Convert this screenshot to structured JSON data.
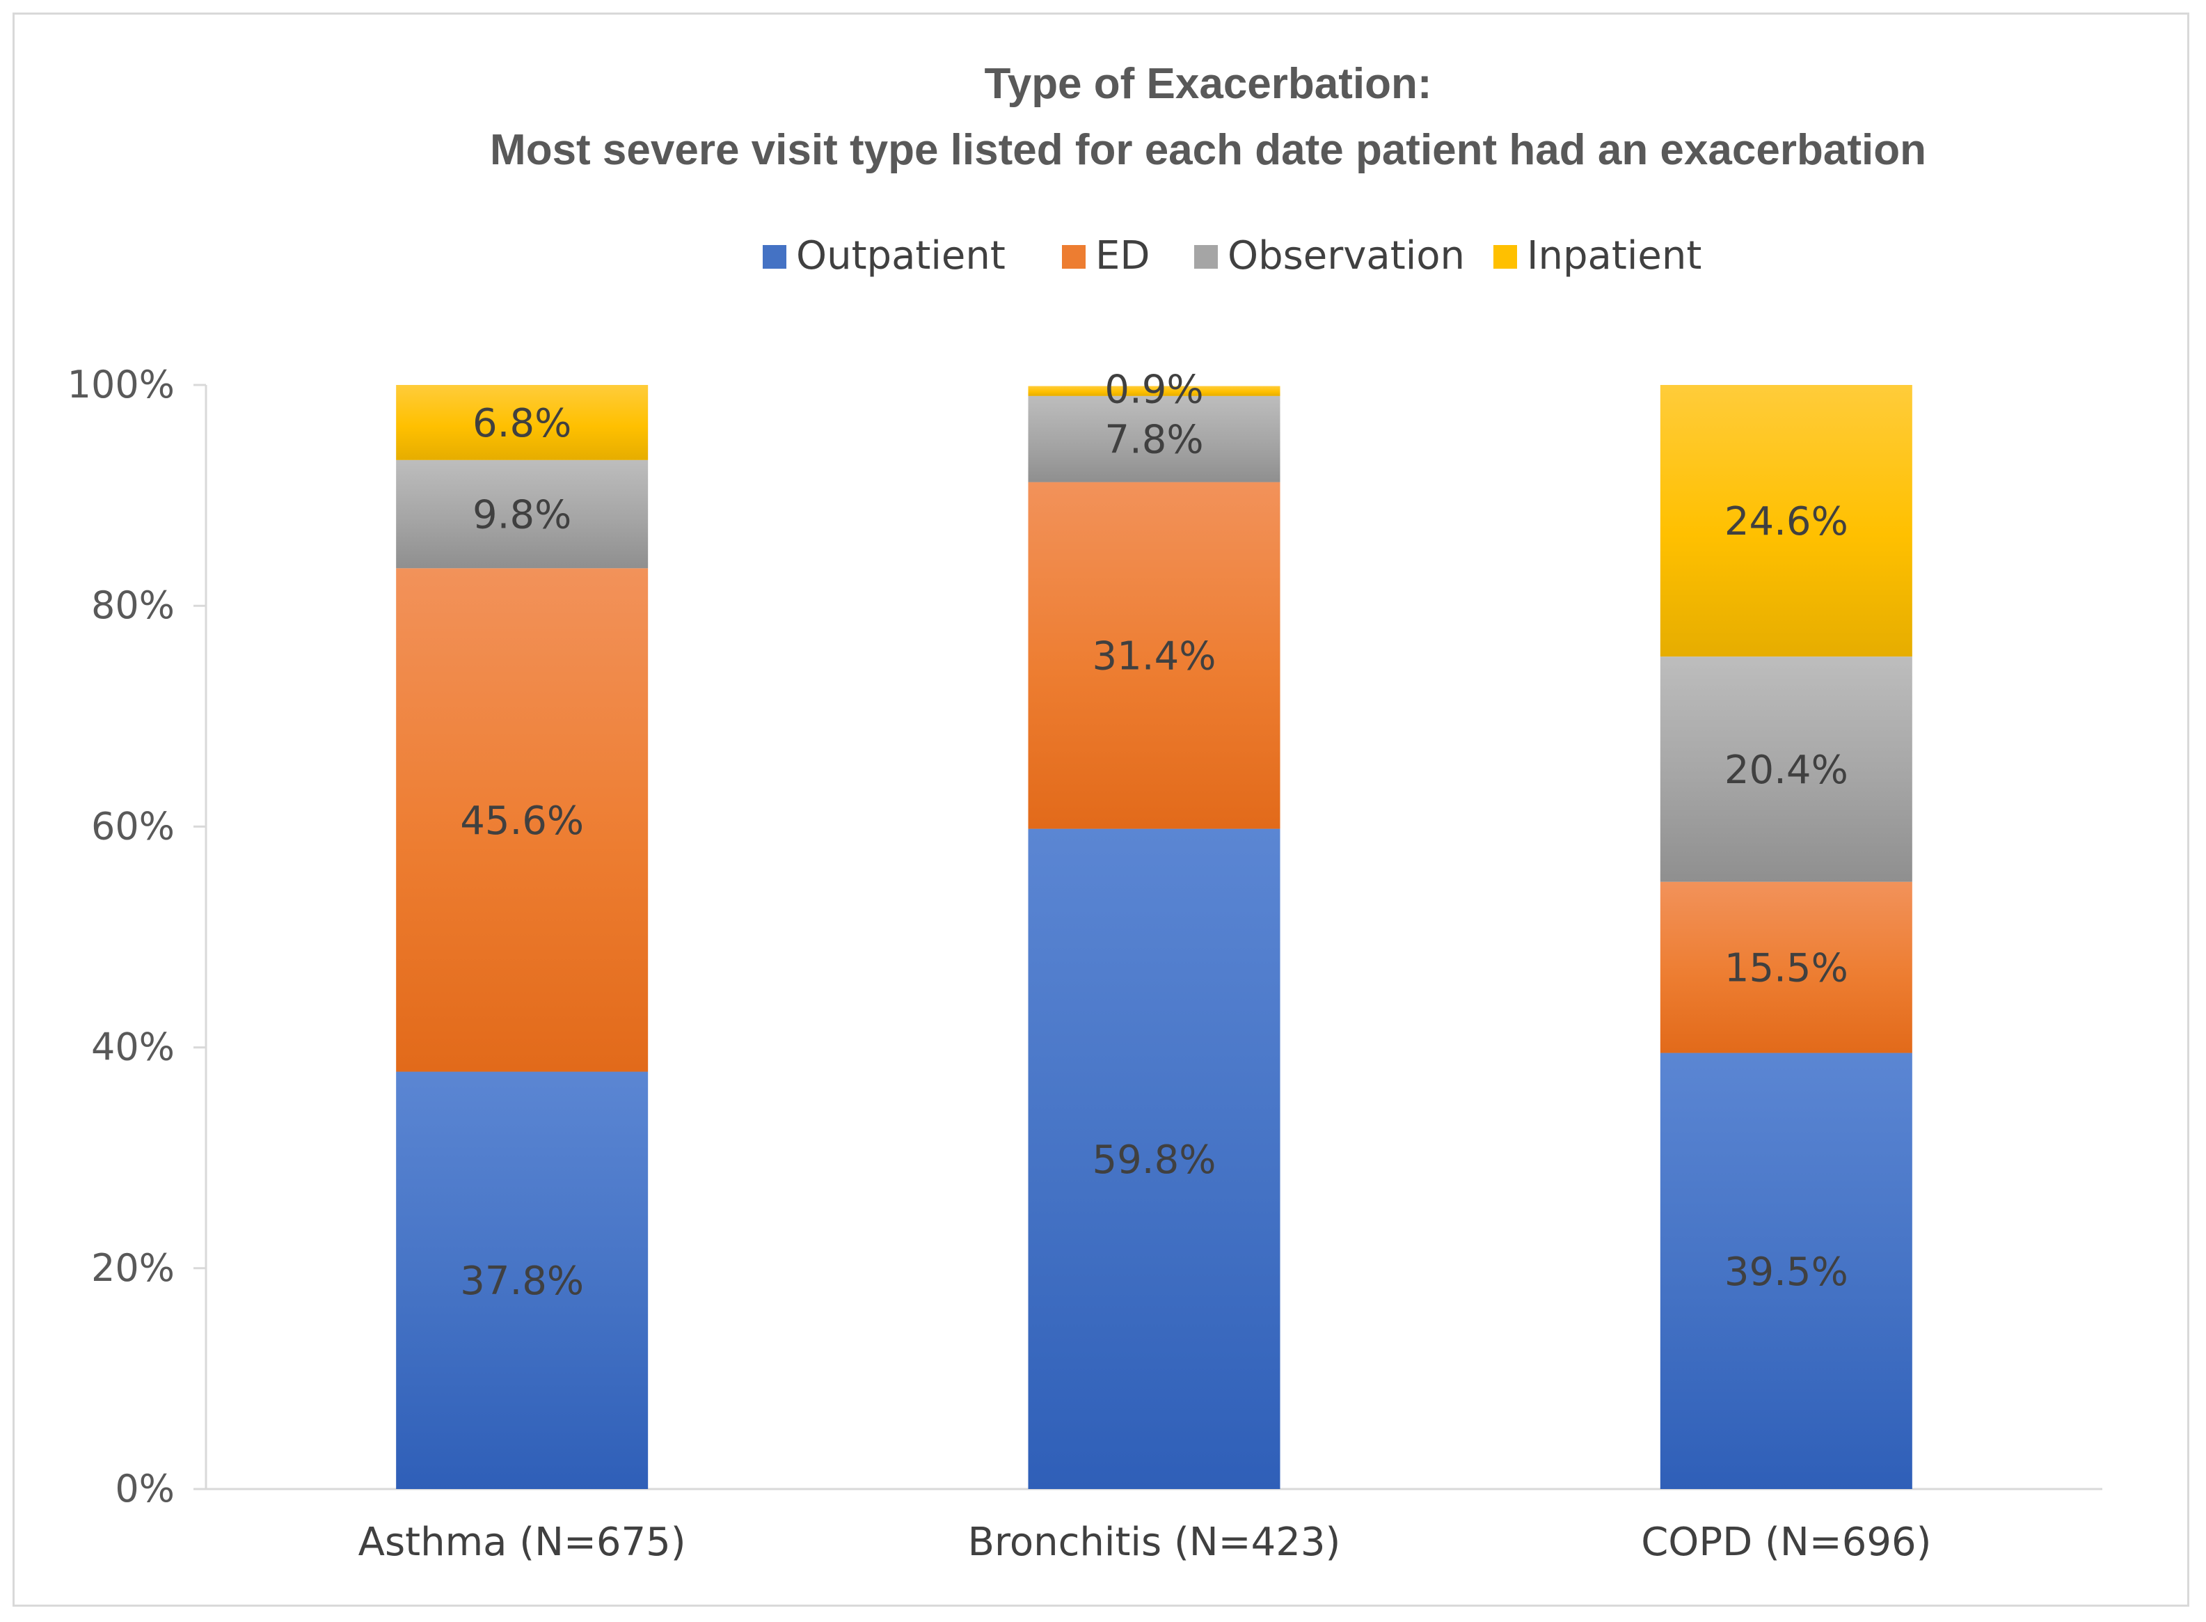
{
  "chart_data": {
    "type": "bar",
    "stacked": true,
    "title": [
      "Type of Exacerbation:",
      "Most severe visit type listed for each date patient had an exacerbation"
    ],
    "categories": [
      "Asthma (N=675)",
      "Bronchitis (N=423)",
      "COPD (N=696)"
    ],
    "ylim": [
      0,
      100
    ],
    "yticks": [
      "0%",
      "20%",
      "40%",
      "60%",
      "80%",
      "100%"
    ],
    "legend_position": "top",
    "grid": false,
    "series": [
      {
        "name": "Outpatient",
        "values": [
          37.8,
          59.8,
          39.5
        ],
        "labels": [
          "37.8%",
          "59.8%",
          "39.5%"
        ],
        "color": "#4472c4",
        "color_light": "#5b86d3",
        "color_dark": "#2f5fb8"
      },
      {
        "name": "ED",
        "values": [
          45.6,
          31.4,
          15.5
        ],
        "labels": [
          "45.6%",
          "31.4%",
          "15.5%"
        ],
        "color": "#ed7d31",
        "color_light": "#f2925a",
        "color_dark": "#e26a1a"
      },
      {
        "name": "Observation",
        "values": [
          9.8,
          7.8,
          20.4
        ],
        "labels": [
          "9.8%",
          "7.8%",
          "20.4%"
        ],
        "color": "#a5a5a5",
        "color_light": "#bdbdbd",
        "color_dark": "#8f8f8f"
      },
      {
        "name": "Inpatient",
        "values": [
          6.8,
          0.9,
          24.6
        ],
        "labels": [
          "6.8%",
          "0.9%",
          "24.6%"
        ],
        "color": "#ffc000",
        "color_light": "#ffcc3a",
        "color_dark": "#e6ad00"
      }
    ]
  }
}
